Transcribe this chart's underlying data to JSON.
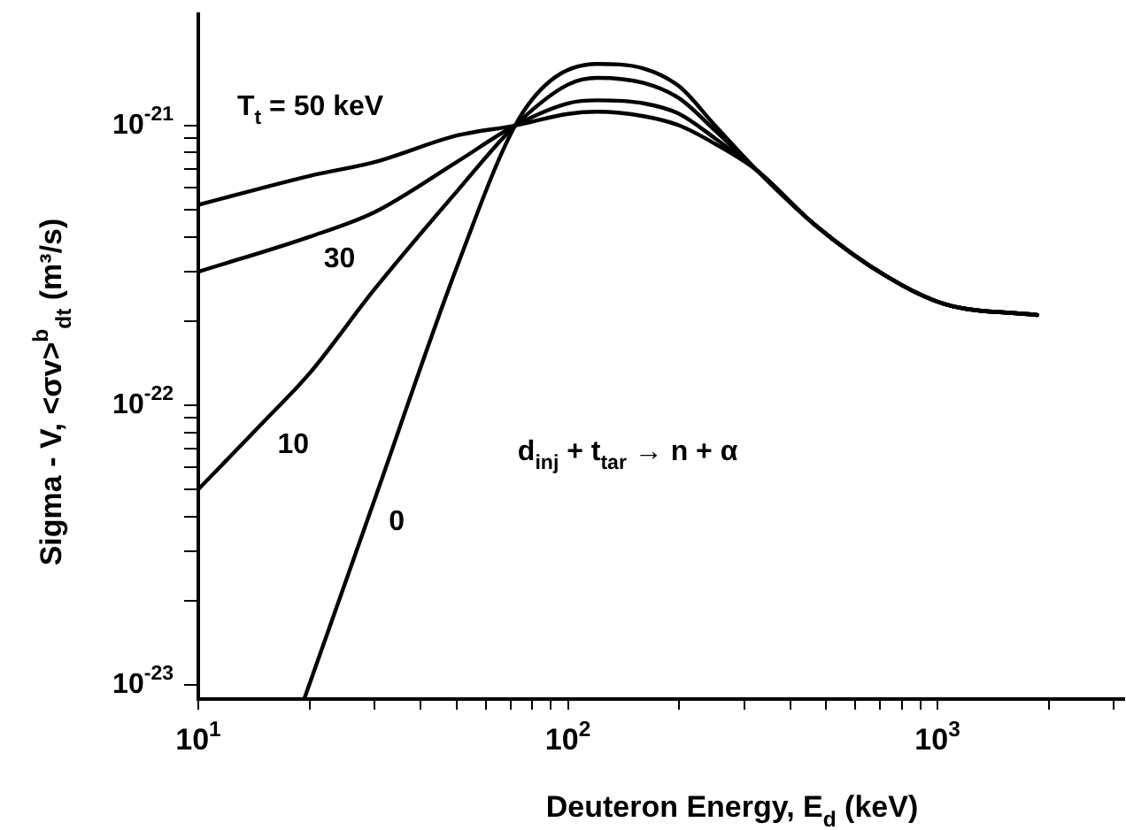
{
  "chart_data": {
    "type": "line",
    "xlabel": "Deuteron Energy, E$_{d}$ (keV)",
    "ylabel": "Sigma - V, <σv>$^{b}$$_{dt}$ (m³/s)",
    "log": "xy",
    "grid": false,
    "legend": false,
    "marker": "none",
    "line_style": "solid",
    "xlim": [
      10,
      3200
    ],
    "ylim": [
      8.9e-24,
      2.5e-21
    ],
    "xticks": [
      {
        "value": 10,
        "label": "10$^{1}$"
      },
      {
        "value": 20,
        "label": null
      },
      {
        "value": 30,
        "label": null
      },
      {
        "value": 40,
        "label": null
      },
      {
        "value": 50,
        "label": null
      },
      {
        "value": 60,
        "label": null
      },
      {
        "value": 70,
        "label": null
      },
      {
        "value": 80,
        "label": null
      },
      {
        "value": 90,
        "label": null
      },
      {
        "value": 100,
        "label": "10$^{2}$"
      },
      {
        "value": 200,
        "label": null
      },
      {
        "value": 300,
        "label": null
      },
      {
        "value": 400,
        "label": null
      },
      {
        "value": 500,
        "label": null
      },
      {
        "value": 600,
        "label": null
      },
      {
        "value": 700,
        "label": null
      },
      {
        "value": 800,
        "label": null
      },
      {
        "value": 900,
        "label": null
      },
      {
        "value": 1000,
        "label": "10$^{3}$"
      },
      {
        "value": 2000,
        "label": null
      },
      {
        "value": 3000,
        "label": null
      }
    ],
    "yticks": [
      {
        "value": 1e-23,
        "label": "10$^{-23}$"
      },
      {
        "value": 2e-23,
        "label": null
      },
      {
        "value": 3e-23,
        "label": null
      },
      {
        "value": 4e-23,
        "label": null
      },
      {
        "value": 5e-23,
        "label": null
      },
      {
        "value": 6e-23,
        "label": null
      },
      {
        "value": 7e-23,
        "label": null
      },
      {
        "value": 8e-23,
        "label": null
      },
      {
        "value": 9e-23,
        "label": null
      },
      {
        "value": 1e-22,
        "label": "10$^{-22}$"
      },
      {
        "value": 2e-22,
        "label": null
      },
      {
        "value": 3e-22,
        "label": null
      },
      {
        "value": 4e-22,
        "label": null
      },
      {
        "value": 5e-22,
        "label": null
      },
      {
        "value": 6e-22,
        "label": null
      },
      {
        "value": 7e-22,
        "label": null
      },
      {
        "value": 8e-22,
        "label": null
      },
      {
        "value": 9e-22,
        "label": null
      },
      {
        "value": 1e-21,
        "label": "10$^{-21}$"
      }
    ],
    "series": [
      {
        "name": "T$_{t}$ = 50 keV",
        "color": "#000000",
        "x": [
          10,
          20,
          30,
          50,
          72,
          100,
          120,
          160,
          200,
          250,
          325,
          467,
          724,
          1045,
          1860
        ],
        "values": [
          5.2e-22,
          6.6e-22,
          7.4e-22,
          9.2e-22,
          1e-21,
          1.1e-21,
          1.12e-21,
          1.08e-21,
          1e-21,
          8.6e-22,
          6.9e-22,
          4.4e-22,
          2.9e-22,
          2.3e-22,
          2.1e-22
        ]
      },
      {
        "name": "30",
        "color": "#000000",
        "x": [
          10,
          20,
          30,
          50,
          72,
          100,
          120,
          160,
          200,
          250,
          325,
          467,
          724,
          1045,
          1860
        ],
        "values": [
          3e-22,
          4e-22,
          4.9e-22,
          7.4e-22,
          1e-21,
          1.2e-21,
          1.23e-21,
          1.2e-21,
          1.1e-21,
          9e-22,
          6.9e-22,
          4.4e-22,
          2.9e-22,
          2.3e-22,
          2.1e-22
        ]
      },
      {
        "name": "10",
        "color": "#000000",
        "x": [
          10,
          15,
          20,
          30,
          50,
          72,
          100,
          120,
          160,
          200,
          250,
          325,
          467,
          724,
          1045,
          1860
        ],
        "values": [
          5e-23,
          8.7e-23,
          1.3e-22,
          2.6e-22,
          5.8e-22,
          1e-21,
          1.4e-21,
          1.48e-21,
          1.42e-21,
          1.25e-21,
          9.6e-22,
          6.9e-22,
          4.4e-22,
          2.9e-22,
          2.3e-22,
          2.1e-22
        ]
      },
      {
        "name": "0",
        "color": "#000000",
        "x": [
          19.4,
          30,
          50,
          72,
          90,
          120,
          160,
          200,
          250,
          325,
          467,
          724,
          1045,
          1860
        ],
        "values": [
          9e-24,
          4.6e-23,
          3.1e-22,
          1e-21,
          1.45e-21,
          1.66e-21,
          1.6e-21,
          1.38e-21,
          1e-21,
          6.9e-22,
          4.4e-22,
          2.9e-22,
          2.3e-22,
          2.1e-22
        ]
      }
    ],
    "annotations": [
      "d$_{inj}$ + t$_{tar}$ → n + α"
    ]
  }
}
